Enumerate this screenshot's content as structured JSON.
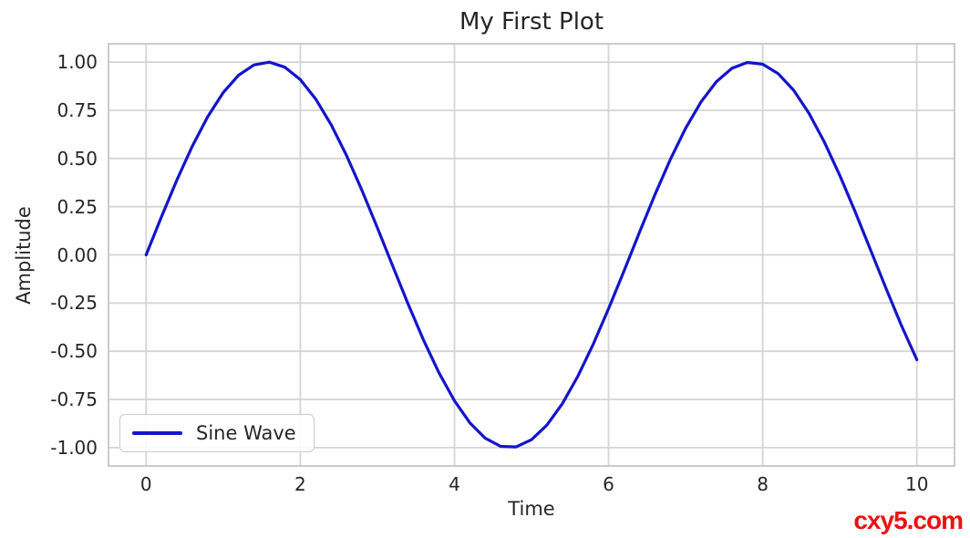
{
  "figure": {
    "background": "#ffffff"
  },
  "chart_data": {
    "type": "line",
    "title": "My First Plot",
    "xlabel": "Time",
    "ylabel": "Amplitude",
    "xlim": [
      -0.5,
      10.5
    ],
    "ylim": [
      -1.1,
      1.1
    ],
    "grid": true,
    "x_ticks": [
      0,
      2,
      4,
      6,
      8,
      10
    ],
    "x_tick_labels": [
      "0",
      "2",
      "4",
      "6",
      "8",
      "10"
    ],
    "y_ticks": [
      1.0,
      0.75,
      0.5,
      0.25,
      0.0,
      -0.25,
      -0.5,
      -0.75,
      -1.0
    ],
    "y_tick_labels": [
      "1.00",
      "0.75",
      "0.50",
      "0.25",
      "0.00",
      "-0.25",
      "-0.50",
      "-0.75",
      "-1.00"
    ],
    "legend": {
      "position": "lower left",
      "entries": [
        {
          "label": "Sine Wave",
          "color": "#1414cc"
        }
      ]
    },
    "series": [
      {
        "name": "Sine Wave",
        "color": "#1414cc",
        "line_width": 3.2,
        "x_start": 0,
        "x_step": 0.2,
        "values": [
          0.0,
          0.1987,
          0.3894,
          0.5646,
          0.7174,
          0.8415,
          0.932,
          0.9854,
          0.9996,
          0.9738,
          0.9093,
          0.8085,
          0.6755,
          0.5155,
          0.335,
          0.1411,
          -0.0584,
          -0.2555,
          -0.4425,
          -0.6119,
          -0.7568,
          -0.8716,
          -0.9516,
          -0.9937,
          -0.9962,
          -0.9589,
          -0.8835,
          -0.7728,
          -0.6313,
          -0.4646,
          -0.2794,
          -0.0831,
          0.1165,
          0.3115,
          0.4941,
          0.657,
          0.7937,
          0.8987,
          0.9679,
          0.9985,
          0.9894,
          0.9407,
          0.8546,
          0.7344,
          0.5849,
          0.4121,
          0.2229,
          0.0248,
          -0.1743,
          -0.3665,
          -0.544
        ]
      }
    ]
  },
  "colors": {
    "grid": "#d5d5d5",
    "spine": "#cccccc",
    "text": "#262626",
    "line": "#1414cc"
  },
  "watermark": {
    "text": "cxy5.com",
    "color": "#ee1111"
  }
}
